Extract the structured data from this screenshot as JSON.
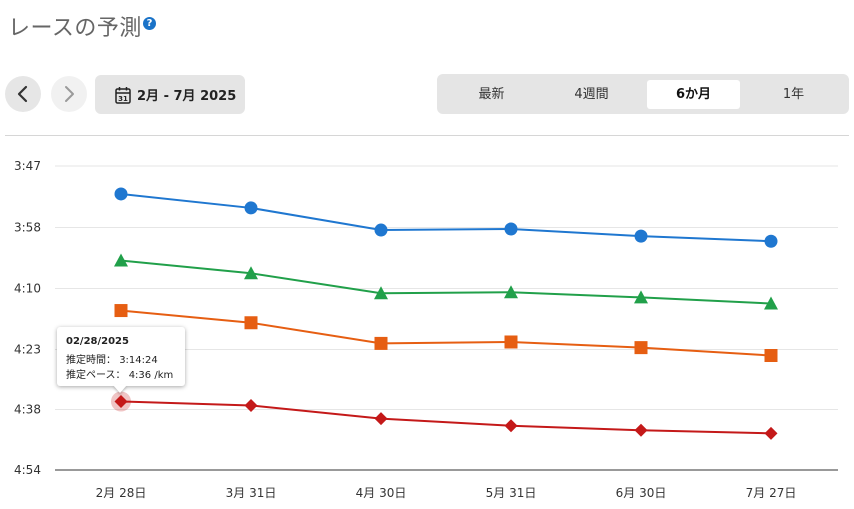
{
  "header": {
    "title": "レースの予測",
    "help_icon": "question-circle-icon"
  },
  "nav": {
    "prev_icon": "chevron-left-icon",
    "next_icon": "chevron-right-icon"
  },
  "date_range": {
    "icon": "calendar-icon",
    "calendar_day": "31",
    "label": "2月 - 7月 2025"
  },
  "periods": [
    {
      "label": "最新",
      "active": false
    },
    {
      "label": "4週間",
      "active": false
    },
    {
      "label": "6か月",
      "active": true
    },
    {
      "label": "1年",
      "active": false
    }
  ],
  "tooltip": {
    "date": "02/28/2025",
    "time_label": "推定時間：",
    "time_value": "3:14:24",
    "pace_label": "推定ペース：",
    "pace_value": "4:36 /km"
  },
  "chart_data": {
    "type": "line",
    "categories": [
      "2月 28日",
      "3月 31日",
      "4月 30日",
      "5月 31日",
      "6月 30日",
      "7月 27日"
    ],
    "y_tick_labels": [
      "3:47",
      "3:58",
      "4:10",
      "4:23",
      "4:38",
      "4:54"
    ],
    "y_tick_seconds": [
      227,
      238,
      250,
      263,
      278,
      294
    ],
    "ylim": [
      227,
      294
    ],
    "y_reversed": true,
    "grid": true,
    "series": [
      {
        "marker": "circle",
        "color": "#1f77d0",
        "values": [
          232.0,
          234.5,
          238.5,
          238.3,
          239.7,
          240.7
        ]
      },
      {
        "marker": "triangle",
        "color": "#21a04a",
        "values": [
          244.5,
          247.0,
          251.0,
          250.8,
          251.9,
          253.2
        ]
      },
      {
        "marker": "square",
        "color": "#e65e12",
        "values": [
          254.7,
          257.3,
          261.7,
          261.4,
          262.6,
          264.5
        ]
      },
      {
        "marker": "diamond",
        "color": "#c41919",
        "values": [
          276.0,
          277.0,
          280.4,
          282.3,
          283.5,
          284.3
        ]
      }
    ],
    "highlighted_point": {
      "series_index": 3,
      "category_index": 0
    }
  }
}
